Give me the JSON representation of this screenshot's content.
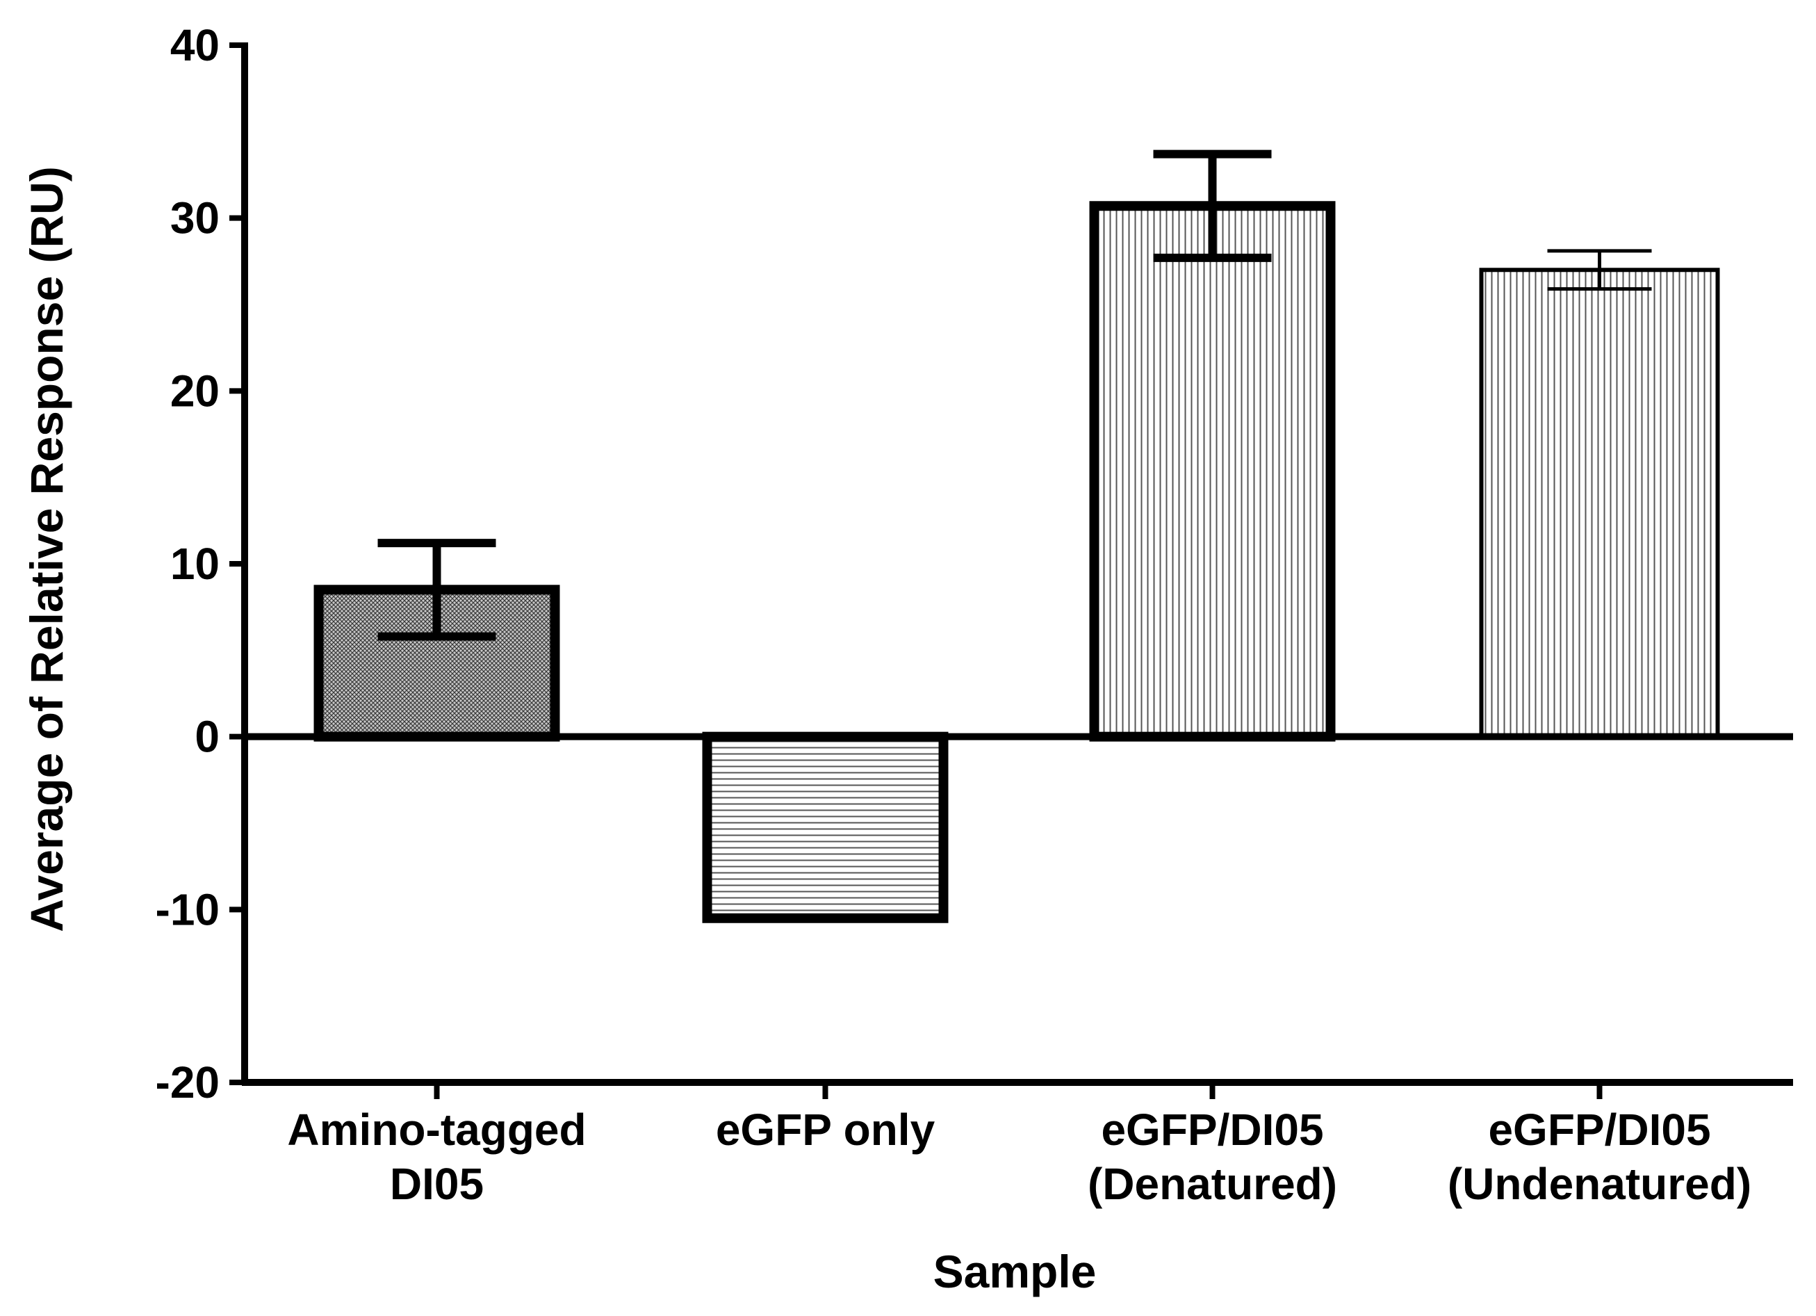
{
  "chart_data": {
    "type": "bar",
    "title": "",
    "xlabel": "Sample",
    "ylabel": "Average of Relative Response (RU)",
    "ylim": [
      -20,
      40
    ],
    "yticks": [
      -20,
      -10,
      0,
      10,
      20,
      30,
      40
    ],
    "ytick_labels": [
      "-20",
      "-10",
      "0",
      "10",
      "20",
      "30",
      "40"
    ],
    "grid": false,
    "categories": [
      [
        "Amino-tagged",
        "DI05"
      ],
      [
        "eGFP only"
      ],
      [
        "eGFP/DI05",
        "(Denatured)"
      ],
      [
        "eGFP/DI05",
        "(Undenatured)"
      ]
    ],
    "values": [
      8.5,
      -10.5,
      30.7,
      27.0
    ],
    "error": [
      2.7,
      0,
      3.0,
      1.1
    ],
    "patterns": [
      "crosshatch-fine",
      "horizontal-lines",
      "vertical-lines",
      "vertical-lines"
    ],
    "colors": {
      "stroke": "#000000",
      "fill": "#ffffff",
      "pattern": "#555555"
    }
  }
}
